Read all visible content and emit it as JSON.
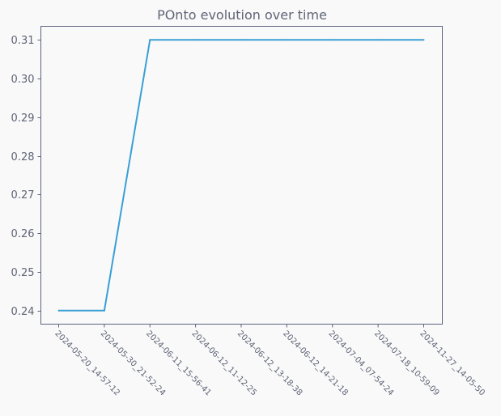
{
  "chart_data": {
    "type": "line",
    "title": "POnto evolution over time",
    "xlabel": "",
    "ylabel": "",
    "categories": [
      "2024-05-20_14-57-12",
      "2024-05-30_21-52-24",
      "2024-06-11_15-56-41",
      "2024-06-12_11-12-25",
      "2024-06-12_13-18-38",
      "2024-06-12_14-21-18",
      "2024-07-04_07-54-24",
      "2024-07-18_10-59-09",
      "2024-11-27_14-05-50"
    ],
    "values": [
      0.24,
      0.24,
      0.31,
      0.31,
      0.31,
      0.31,
      0.31,
      0.31,
      0.31
    ],
    "ylim": [
      0.2365,
      0.3135
    ],
    "yticks": [
      0.24,
      0.25,
      0.26,
      0.27,
      0.28,
      0.29,
      0.3,
      0.31
    ],
    "ytick_labels": [
      "0.24",
      "0.25",
      "0.26",
      "0.27",
      "0.28",
      "0.29",
      "0.30",
      "0.31"
    ],
    "grid": false,
    "colors": {
      "line": "#3a9fd5",
      "axes": "#5f6380",
      "text": "#5f6577",
      "title": "#5f6577",
      "plot_bg": "#f9f9f9"
    }
  }
}
